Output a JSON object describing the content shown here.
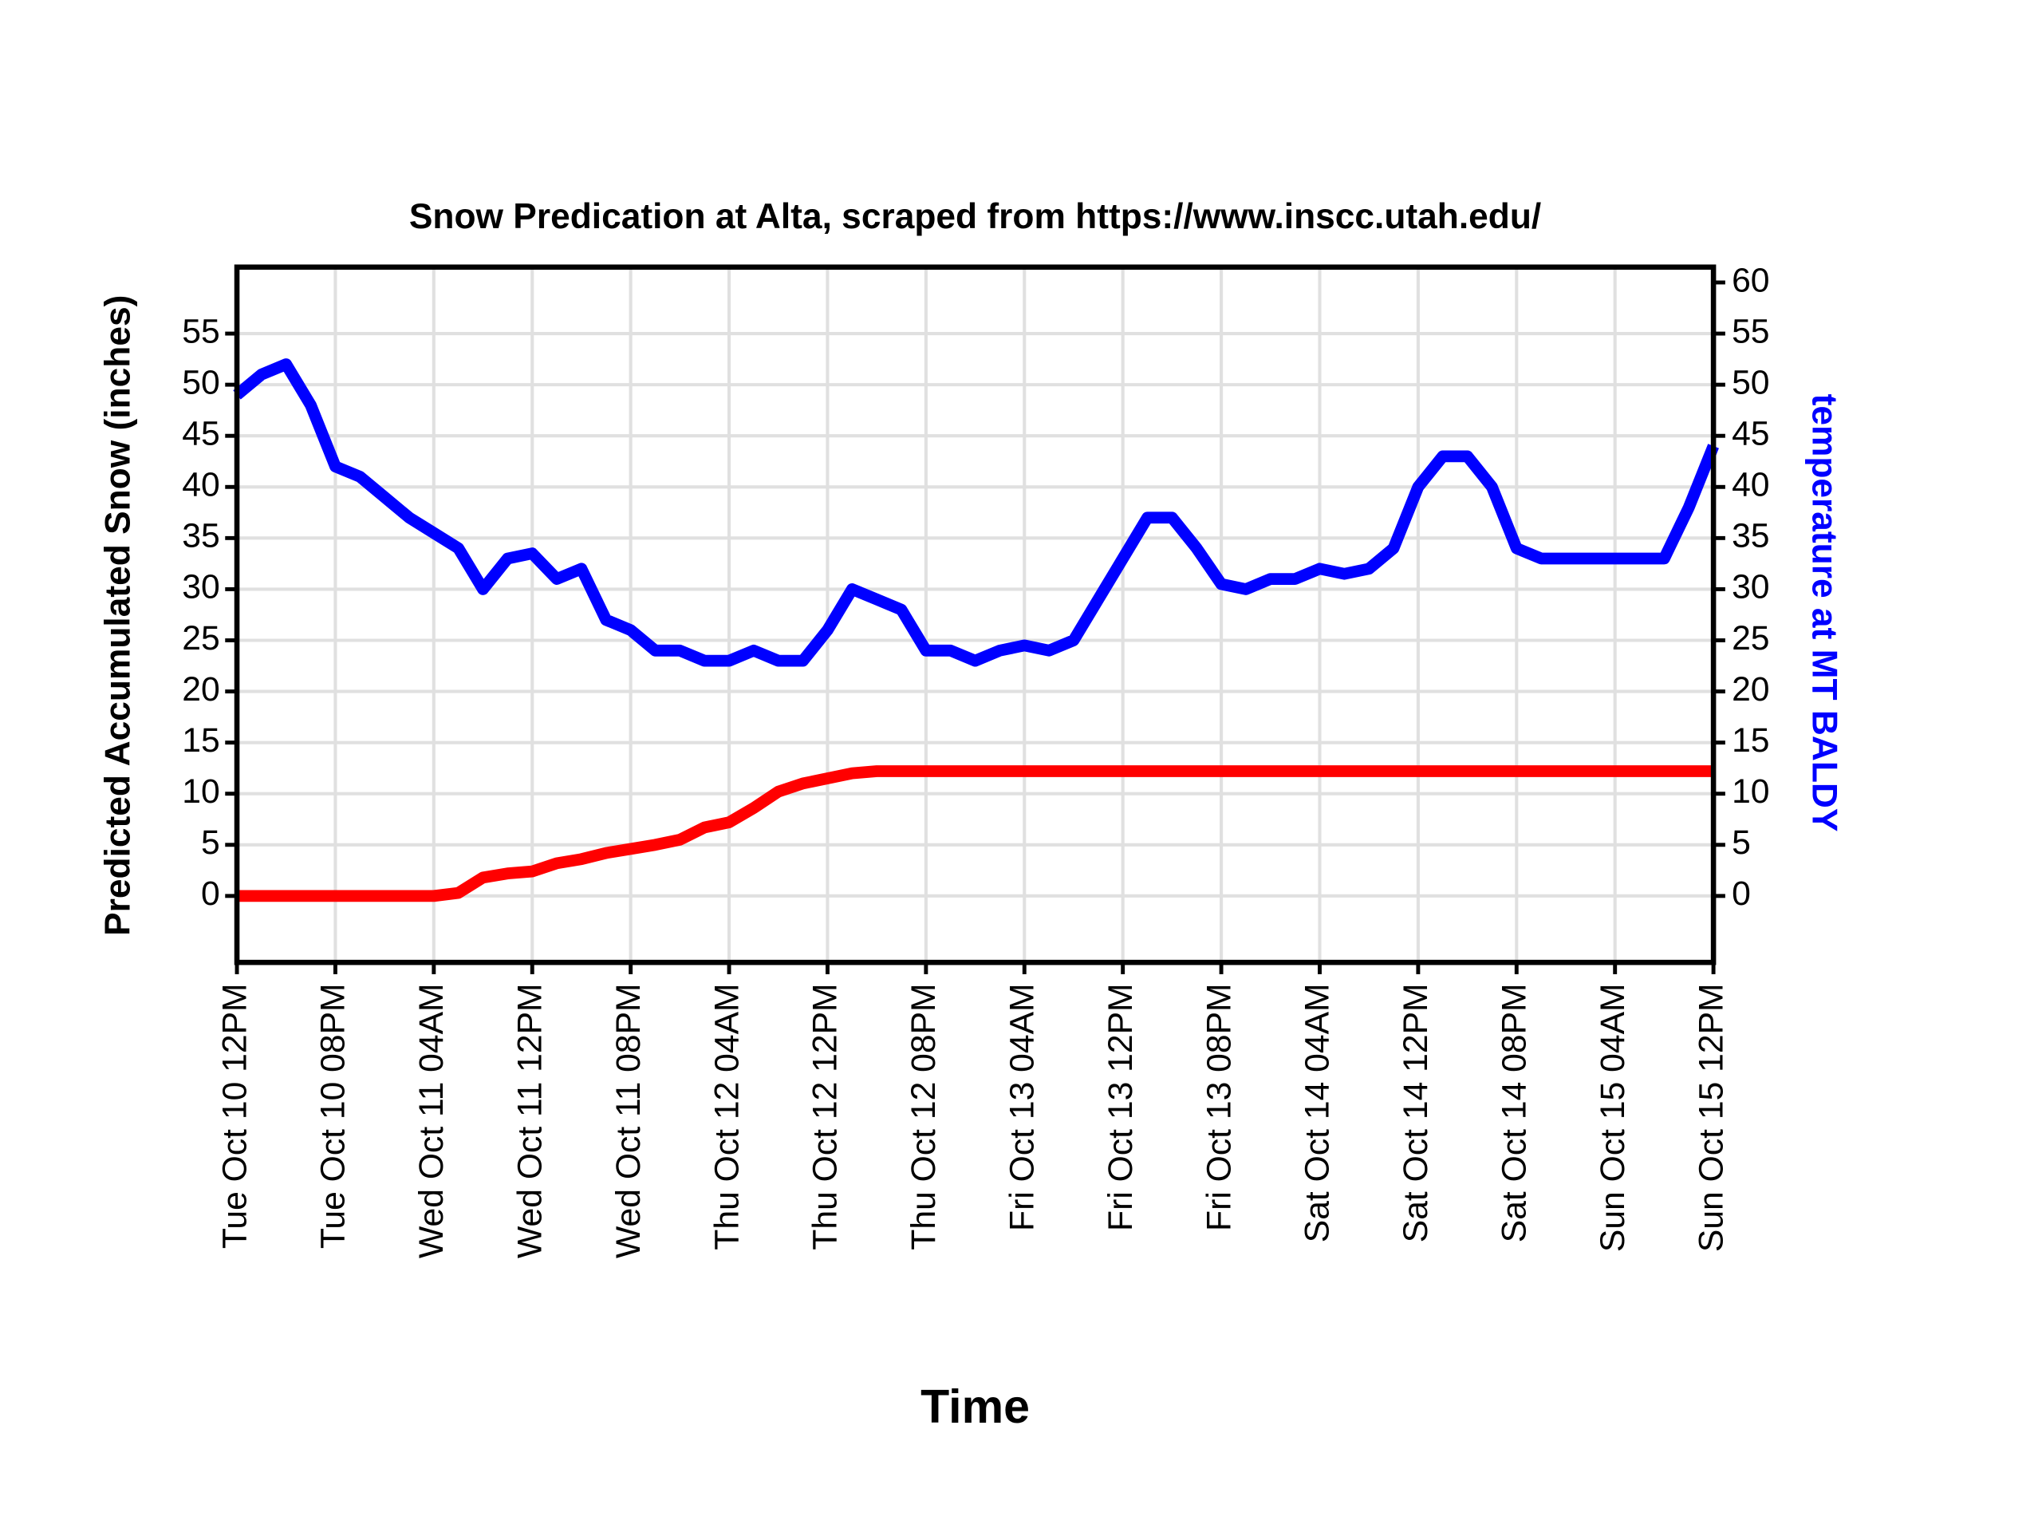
{
  "chart_data": {
    "type": "line",
    "title": "Snow Predication at Alta, scraped from https://www.inscc.utah.edu/",
    "x_label": "Time",
    "y_label": "Predicted Accumulated Snow (inches)",
    "y2_label": "temperature at MT BALDY",
    "x": [
      "Tue Oct 10 12PM",
      "Tue Oct 10 02PM",
      "Tue Oct 10 04PM",
      "Tue Oct 10 06PM",
      "Tue Oct 10 08PM",
      "Tue Oct 10 10PM",
      "Wed Oct 11 12AM",
      "Wed Oct 11 02AM",
      "Wed Oct 11 04AM",
      "Wed Oct 11 06AM",
      "Wed Oct 11 08AM",
      "Wed Oct 11 10AM",
      "Wed Oct 11 12PM",
      "Wed Oct 11 02PM",
      "Wed Oct 11 04PM",
      "Wed Oct 11 06PM",
      "Wed Oct 11 08PM",
      "Wed Oct 11 10PM",
      "Thu Oct 12 12AM",
      "Thu Oct 12 02AM",
      "Thu Oct 12 04AM",
      "Thu Oct 12 06AM",
      "Thu Oct 12 08AM",
      "Thu Oct 12 10AM",
      "Thu Oct 12 12PM",
      "Thu Oct 12 02PM",
      "Thu Oct 12 04PM",
      "Thu Oct 12 06PM",
      "Thu Oct 12 08PM",
      "Thu Oct 12 10PM",
      "Fri Oct 13 12AM",
      "Fri Oct 13 02AM",
      "Fri Oct 13 04AM",
      "Fri Oct 13 06AM",
      "Fri Oct 13 08AM",
      "Fri Oct 13 10AM",
      "Fri Oct 13 12PM",
      "Fri Oct 13 02PM",
      "Fri Oct 13 04PM",
      "Fri Oct 13 06PM",
      "Fri Oct 13 08PM",
      "Fri Oct 13 10PM",
      "Sat Oct 14 12AM",
      "Sat Oct 14 02AM",
      "Sat Oct 14 04AM",
      "Sat Oct 14 06AM",
      "Sat Oct 14 08AM",
      "Sat Oct 14 10AM",
      "Sat Oct 14 12PM",
      "Sat Oct 14 02PM",
      "Sat Oct 14 04PM",
      "Sat Oct 14 06PM",
      "Sat Oct 14 08PM",
      "Sat Oct 14 10PM",
      "Sun Oct 15 12AM",
      "Sun Oct 15 02AM",
      "Sun Oct 15 04AM",
      "Sun Oct 15 06AM",
      "Sun Oct 15 08AM",
      "Sun Oct 15 10AM",
      "Sun Oct 15 12PM"
    ],
    "xticks": [
      "Tue Oct 10 12PM",
      "Tue Oct 10 08PM",
      "Wed Oct 11 04AM",
      "Wed Oct 11 12PM",
      "Wed Oct 11 08PM",
      "Thu Oct 12 04AM",
      "Thu Oct 12 12PM",
      "Thu Oct 12 08PM",
      "Fri Oct 13 04AM",
      "Fri Oct 13 12PM",
      "Fri Oct 13 08PM",
      "Sat Oct 14 04AM",
      "Sat Oct 14 12PM",
      "Sat Oct 14 08PM",
      "Sun Oct 15 04AM",
      "Sun Oct 15 12PM"
    ],
    "ylim": [
      -6.5,
      61.5
    ],
    "yticks": [
      0,
      5,
      10,
      15,
      20,
      25,
      30,
      35,
      40,
      45,
      50,
      55
    ],
    "y2lim": [
      -6.5,
      61.5
    ],
    "y2ticks": [
      0,
      5,
      10,
      15,
      20,
      25,
      30,
      35,
      40,
      45,
      50,
      55,
      60
    ],
    "grid": true,
    "series": [
      {
        "color": "#ff0000",
        "values": [
          0,
          0,
          0,
          0,
          0,
          0,
          0,
          0,
          0,
          0.3,
          1.8,
          2.2,
          2.4,
          3.2,
          3.6,
          4.2,
          4.6,
          5,
          5.5,
          6.7,
          7.2,
          8.6,
          10.2,
          11,
          11.5,
          12,
          12.2,
          12.2,
          12.2,
          12.2,
          12.2,
          12.2,
          12.2,
          12.2,
          12.2,
          12.2,
          12.2,
          12.2,
          12.2,
          12.2,
          12.2,
          12.2,
          12.2,
          12.2,
          12.2,
          12.2,
          12.2,
          12.2,
          12.2,
          12.2,
          12.2,
          12.2,
          12.2,
          12.2,
          12.2,
          12.2,
          12.2,
          12.2,
          12.2,
          12.2,
          12.2
        ]
      },
      {
        "color": "#0000ff",
        "axis": "y2",
        "values": [
          49,
          51,
          52,
          48,
          42,
          41,
          39,
          37,
          35.5,
          34,
          30,
          33,
          33.5,
          31,
          32,
          27,
          26,
          24,
          24,
          23,
          23,
          24,
          23,
          23,
          26,
          30,
          29,
          28,
          24,
          24,
          23,
          24,
          24.5,
          24,
          25,
          29,
          33,
          37,
          37,
          34,
          30.5,
          30,
          31,
          31,
          32,
          31.5,
          32,
          34,
          40,
          43,
          43,
          40,
          34,
          33,
          33,
          33,
          33,
          33,
          33,
          38,
          44
        ]
      }
    ]
  }
}
